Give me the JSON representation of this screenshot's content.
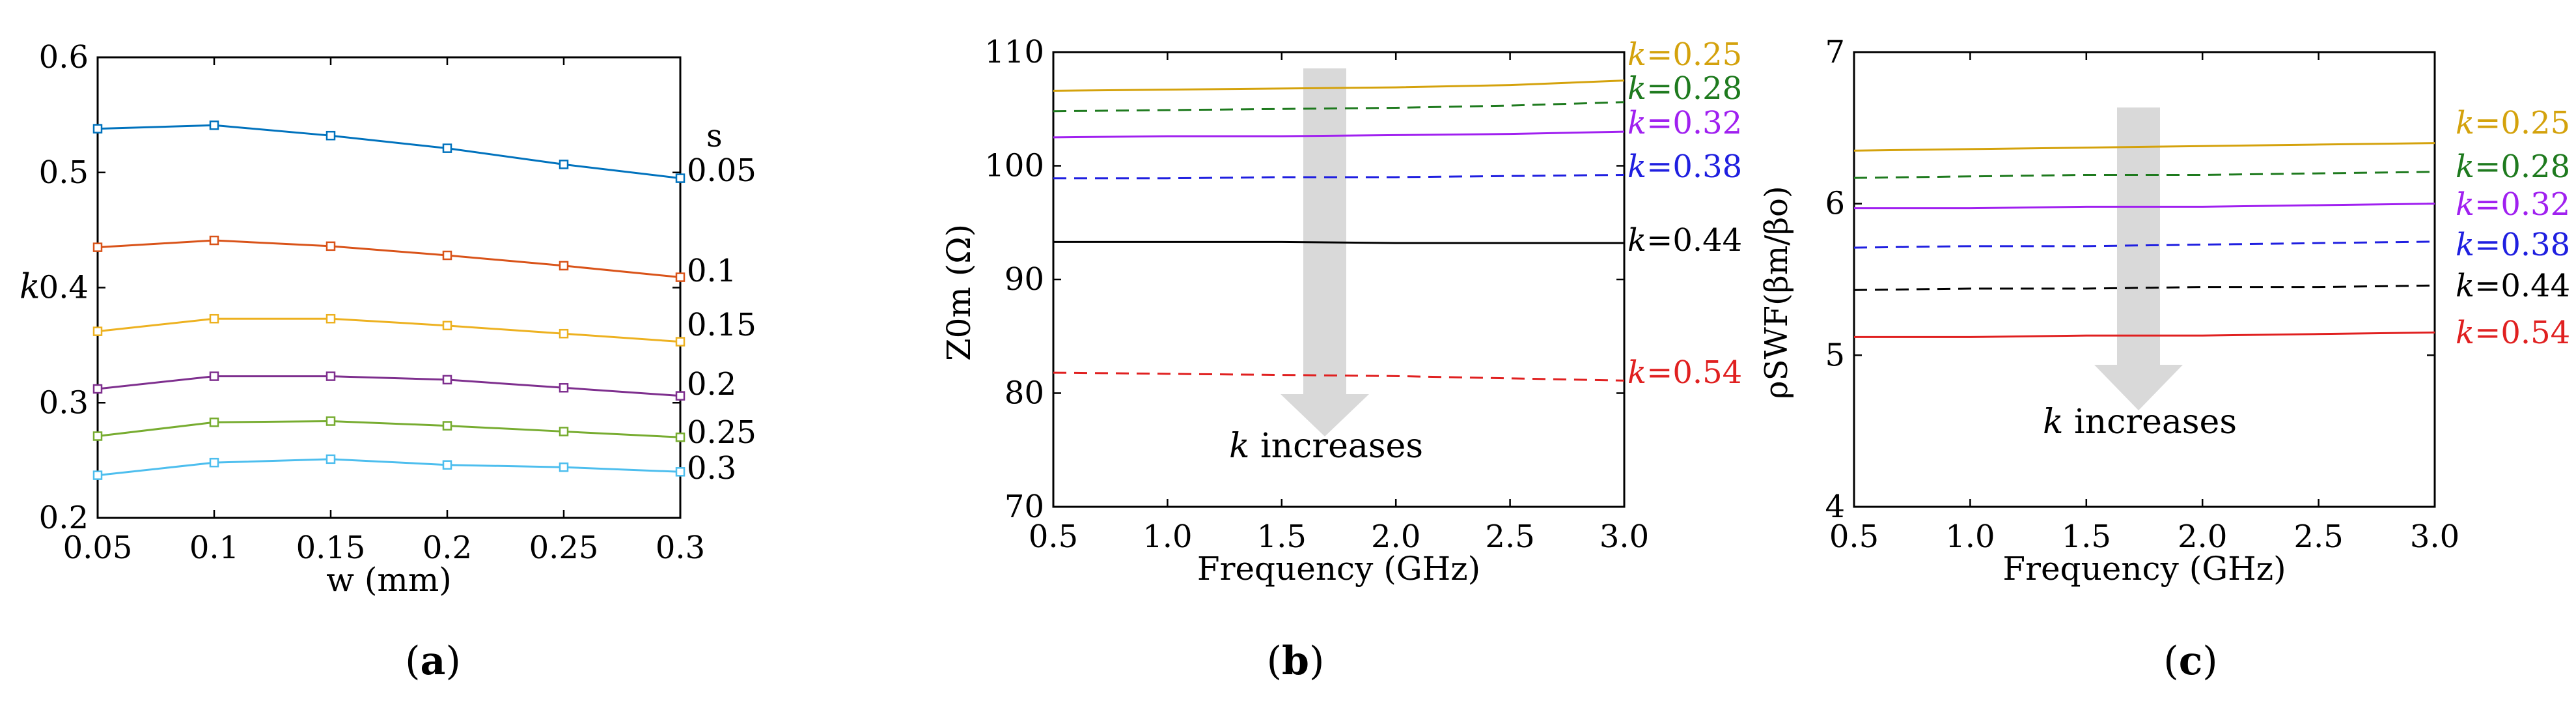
{
  "chart_data": [
    {
      "panel": "(a)",
      "type": "line",
      "xlabel": "w (mm)",
      "ylabel": "k",
      "legend_title": "s",
      "xlim": [
        0.05,
        0.3
      ],
      "ylim": [
        0.2,
        0.6
      ],
      "x": [
        0.05,
        0.1,
        0.15,
        0.2,
        0.25,
        0.3
      ],
      "x_ticks": [
        "0.05",
        "0.1",
        "0.15",
        "0.2",
        "0.25",
        "0.3"
      ],
      "y_ticks": [
        "0.2",
        "0.3",
        "0.4",
        "0.5",
        "0.6"
      ],
      "series": [
        {
          "name": "0.05",
          "color": "#0072BD",
          "values": [
            0.538,
            0.541,
            0.532,
            0.521,
            0.507,
            0.495
          ]
        },
        {
          "name": "0.1",
          "color": "#D95319",
          "values": [
            0.435,
            0.441,
            0.436,
            0.428,
            0.419,
            0.409
          ]
        },
        {
          "name": "0.15",
          "color": "#EDB120",
          "values": [
            0.362,
            0.373,
            0.373,
            0.367,
            0.36,
            0.353
          ]
        },
        {
          "name": "0.2",
          "color": "#7E2F8E",
          "values": [
            0.312,
            0.323,
            0.323,
            0.32,
            0.313,
            0.306
          ]
        },
        {
          "name": "0.25",
          "color": "#77AC30",
          "values": [
            0.271,
            0.283,
            0.284,
            0.28,
            0.275,
            0.27
          ]
        },
        {
          "name": "0.3",
          "color": "#4DBEEE",
          "values": [
            0.237,
            0.248,
            0.251,
            0.246,
            0.244,
            0.24
          ]
        }
      ]
    },
    {
      "panel": "(b)",
      "type": "line",
      "xlabel": "Frequency (GHz)",
      "ylabel": "Z0m (Ω)",
      "xlim": [
        0.5,
        3.0
      ],
      "ylim": [
        70,
        110
      ],
      "x_ticks": [
        "0.5",
        "1.0",
        "1.5",
        "2.0",
        "2.5",
        "3.0"
      ],
      "y_ticks": [
        "70",
        "80",
        "90",
        "100",
        "110"
      ],
      "annotation": "k increases",
      "series": [
        {
          "name": "k=0.25",
          "color": "#D4A20C",
          "dash": "solid",
          "x": [
            0.5,
            1.0,
            1.5,
            2.0,
            2.5,
            3.0
          ],
          "values": [
            106.6,
            106.7,
            106.8,
            106.9,
            107.1,
            107.5
          ]
        },
        {
          "name": "k=0.28",
          "color": "#1E7A1E",
          "dash": "dashed",
          "x": [
            0.5,
            1.0,
            1.5,
            2.0,
            2.5,
            3.0
          ],
          "values": [
            104.8,
            104.9,
            105.0,
            105.1,
            105.3,
            105.6
          ]
        },
        {
          "name": "k=0.32",
          "color": "#A020F0",
          "dash": "solid",
          "x": [
            0.5,
            1.0,
            1.5,
            2.0,
            2.5,
            3.0
          ],
          "values": [
            102.5,
            102.6,
            102.6,
            102.7,
            102.8,
            103.0
          ]
        },
        {
          "name": "k=0.38",
          "color": "#1F1FE0",
          "dash": "dashed",
          "x": [
            0.5,
            1.0,
            1.5,
            2.0,
            2.5,
            3.0
          ],
          "values": [
            98.9,
            98.9,
            99.0,
            99.0,
            99.1,
            99.2
          ]
        },
        {
          "name": "k=0.44",
          "color": "#000000",
          "dash": "solid",
          "x": [
            0.5,
            1.0,
            1.5,
            2.0,
            2.5,
            3.0
          ],
          "values": [
            93.3,
            93.3,
            93.3,
            93.2,
            93.2,
            93.2
          ]
        },
        {
          "name": "k=0.54",
          "color": "#E02020",
          "dash": "dashed",
          "x": [
            0.5,
            1.0,
            1.5,
            2.0,
            2.5,
            3.0
          ],
          "values": [
            81.8,
            81.7,
            81.6,
            81.5,
            81.3,
            81.1
          ]
        }
      ]
    },
    {
      "panel": "(c)",
      "type": "line",
      "xlabel": "Frequency (GHz)",
      "ylabel": "ρSWF(βm/βo)",
      "xlim": [
        0.5,
        3.0
      ],
      "ylim": [
        4,
        7
      ],
      "x_ticks": [
        "0.5",
        "1.0",
        "1.5",
        "2.0",
        "2.5",
        "3.0"
      ],
      "y_ticks": [
        "4",
        "5",
        "6",
        "7"
      ],
      "annotation": "k increases",
      "series": [
        {
          "name": "k=0.25",
          "color": "#D4A20C",
          "dash": "solid",
          "x": [
            0.5,
            1.0,
            1.5,
            2.0,
            2.5,
            3.0
          ],
          "values": [
            6.35,
            6.36,
            6.37,
            6.38,
            6.39,
            6.4
          ]
        },
        {
          "name": "k=0.28",
          "color": "#1E7A1E",
          "dash": "dashed",
          "x": [
            0.5,
            1.0,
            1.5,
            2.0,
            2.5,
            3.0
          ],
          "values": [
            6.17,
            6.18,
            6.19,
            6.19,
            6.2,
            6.21
          ]
        },
        {
          "name": "k=0.32",
          "color": "#A020F0",
          "dash": "solid",
          "x": [
            0.5,
            1.0,
            1.5,
            2.0,
            2.5,
            3.0
          ],
          "values": [
            5.97,
            5.97,
            5.98,
            5.98,
            5.99,
            6.0
          ]
        },
        {
          "name": "k=0.38",
          "color": "#1F1FE0",
          "dash": "dashed",
          "x": [
            0.5,
            1.0,
            1.5,
            2.0,
            2.5,
            3.0
          ],
          "values": [
            5.71,
            5.72,
            5.72,
            5.73,
            5.74,
            5.75
          ]
        },
        {
          "name": "k=0.44",
          "color": "#000000",
          "dash": "dashed",
          "x": [
            0.5,
            1.0,
            1.5,
            2.0,
            2.5,
            3.0
          ],
          "values": [
            5.43,
            5.44,
            5.44,
            5.45,
            5.45,
            5.46
          ]
        },
        {
          "name": "k=0.54",
          "color": "#E02020",
          "dash": "solid",
          "x": [
            0.5,
            1.0,
            1.5,
            2.0,
            2.5,
            3.0
          ],
          "values": [
            5.12,
            5.12,
            5.13,
            5.13,
            5.14,
            5.15
          ]
        }
      ]
    }
  ]
}
